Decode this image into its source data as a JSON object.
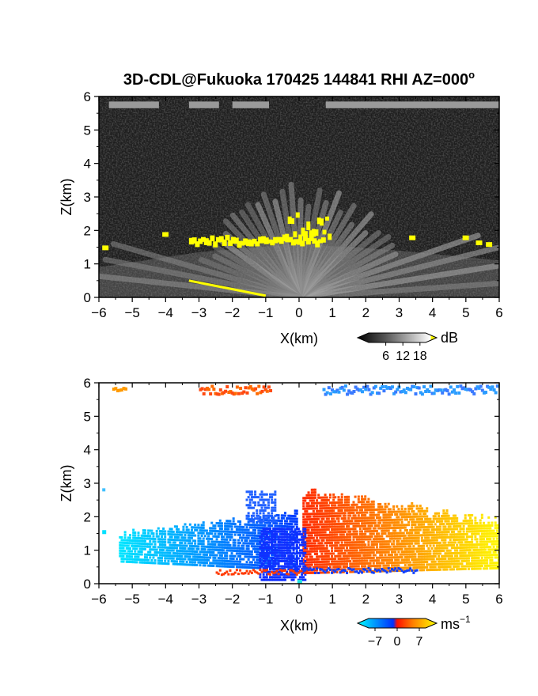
{
  "chart_data": [
    {
      "type": "heatmap",
      "title": "3D-CDL@Fukuoka 170425 144841 RHI AZ=000",
      "title_superscript": "o",
      "xlabel": "X(km)",
      "ylabel": "Z(km)",
      "xlim": [
        -6,
        6
      ],
      "ylim": [
        0,
        6
      ],
      "x_ticks": [
        -6,
        -5,
        -4,
        -3,
        -2,
        -1,
        0,
        1,
        2,
        3,
        4,
        5,
        6
      ],
      "y_ticks": [
        0,
        1,
        2,
        3,
        4,
        5,
        6
      ],
      "colorbar": {
        "unit": "dB",
        "tick_labels": [
          "6",
          "12",
          "18"
        ],
        "tick_values": [
          6,
          12,
          18
        ],
        "range": [
          0,
          20
        ],
        "colors": [
          "#000000",
          "#555555",
          "#aaaaaa",
          "#ffffff",
          "#ffff00"
        ]
      },
      "background_color": "#1e1e1e",
      "features": [
        {
          "type": "layer",
          "x": [
            -6,
            6
          ],
          "z": [
            5.65,
            5.85
          ],
          "value": 10
        },
        {
          "type": "beams",
          "origin": [
            0,
            0
          ],
          "angle_step_deg": 5,
          "max_range_km": 6.4,
          "value": 12
        },
        {
          "type": "cloud_base",
          "z": [
            1.5,
            1.75
          ],
          "value": 18
        }
      ]
    },
    {
      "type": "heatmap",
      "xlabel": "X(km)",
      "ylabel": "Z(km)",
      "xlim": [
        -6,
        6
      ],
      "ylim": [
        0,
        6
      ],
      "x_ticks": [
        -6,
        -5,
        -4,
        -3,
        -2,
        -1,
        0,
        1,
        2,
        3,
        4,
        5,
        6
      ],
      "y_ticks": [
        0,
        1,
        2,
        3,
        4,
        5,
        6
      ],
      "colorbar": {
        "unit": "ms",
        "unit_superscript": "−1",
        "tick_labels": [
          "−7",
          "0",
          "7"
        ],
        "tick_values": [
          -7,
          0,
          7
        ],
        "range": [
          -9,
          9
        ],
        "colors": [
          "#00ffff",
          "#0040ff",
          "#ff0000",
          "#ff8000",
          "#ffff00"
        ]
      },
      "background_color": "#ffffff",
      "features": [
        {
          "type": "left_flow",
          "x": [
            -5.4,
            -0.2
          ],
          "z": [
            0.4,
            2.0
          ],
          "value": -5
        },
        {
          "type": "right_flow",
          "x": [
            0.1,
            6
          ],
          "z": [
            0.3,
            2.7
          ],
          "value": 4
        },
        {
          "type": "top_layer_left",
          "x": [
            -5.6,
            -0.9
          ],
          "z": [
            5.75,
            5.95
          ],
          "value": 3
        },
        {
          "type": "top_layer_right",
          "x": [
            0.7,
            6
          ],
          "z": [
            5.65,
            5.95
          ],
          "value": -5
        }
      ]
    }
  ]
}
